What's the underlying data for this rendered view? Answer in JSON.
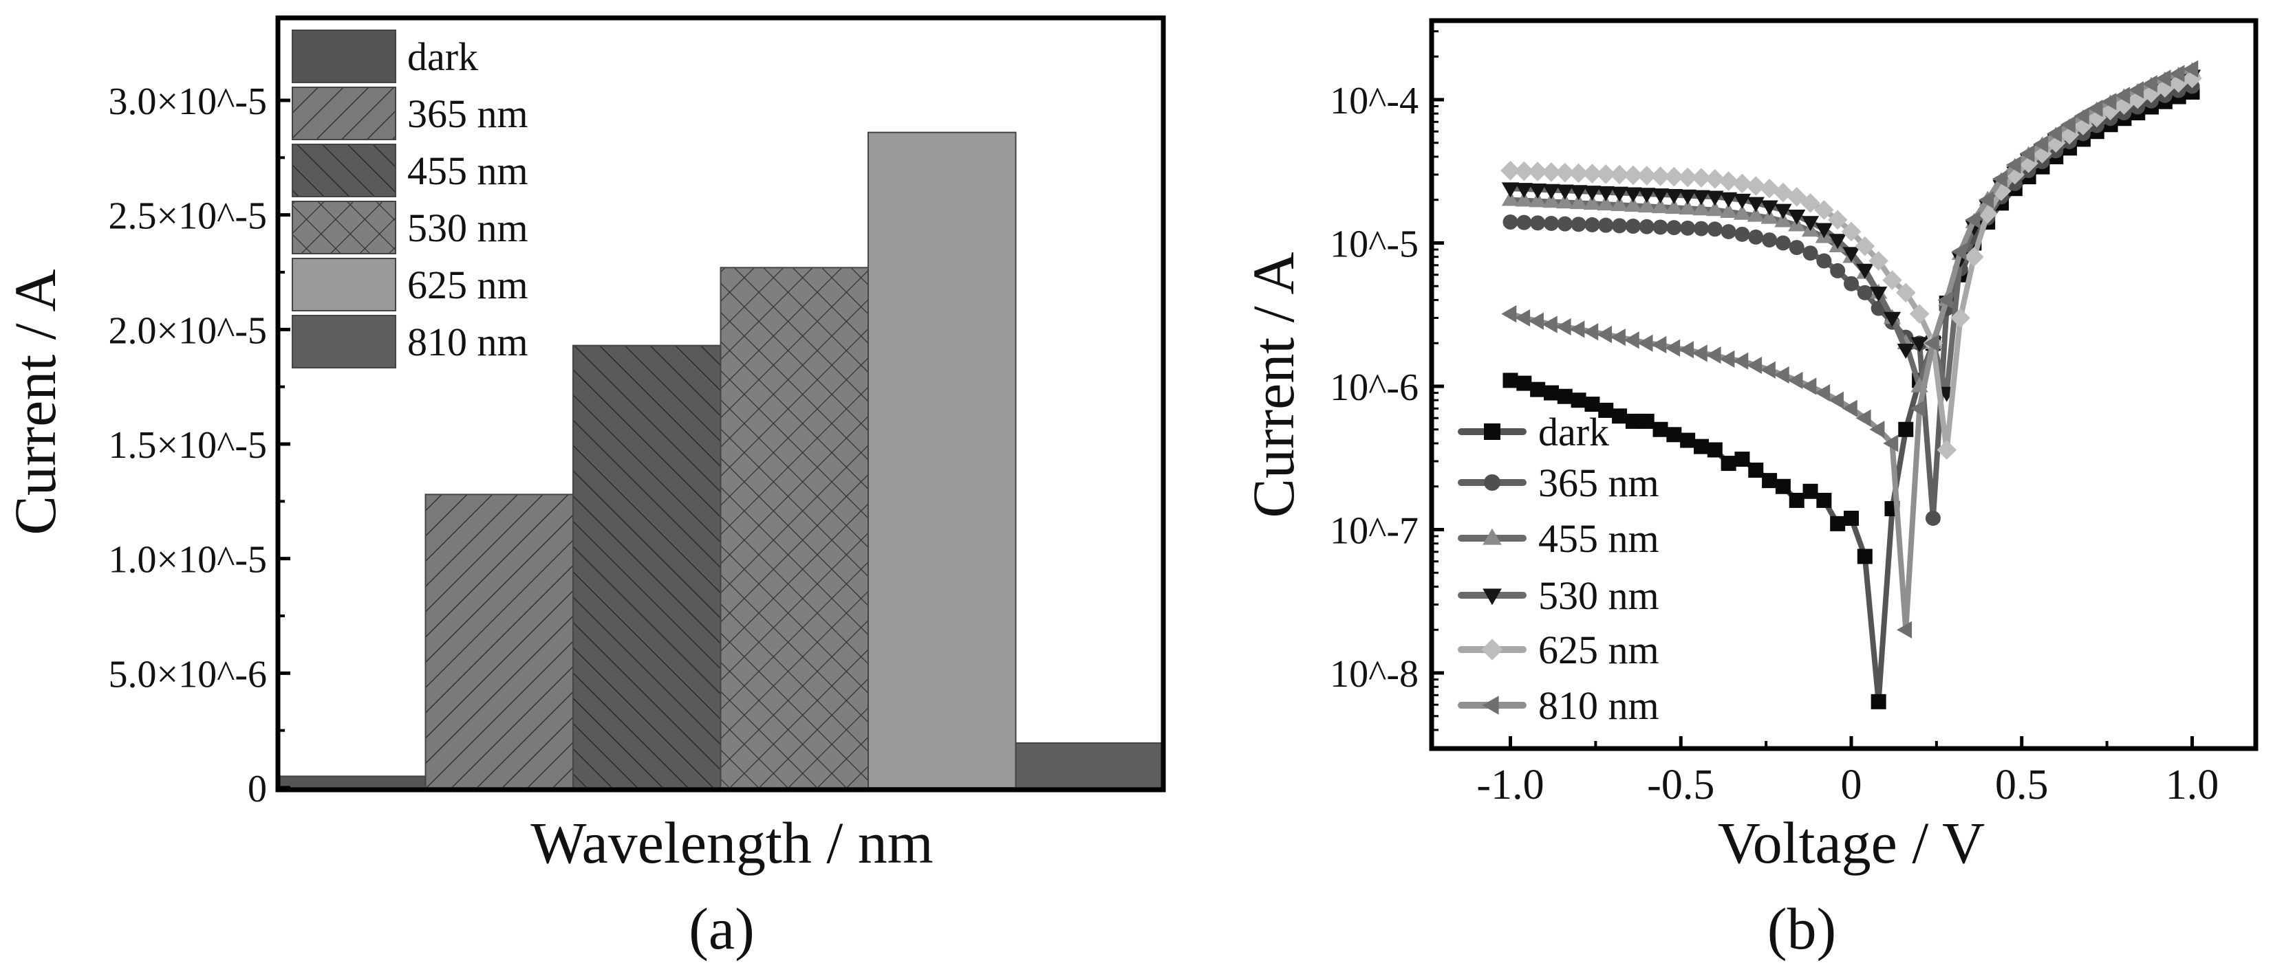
{
  "chart_data": [
    {
      "type": "bar",
      "panel_label": "(a)",
      "xlabel": "Wavelength / nm",
      "ylabel": "Current / A",
      "ylim": [
        0,
        3.36e-05
      ],
      "yticks": [
        0,
        5e-06,
        1e-05,
        1.5e-05,
        2e-05,
        2.5e-05,
        3e-05
      ],
      "ytick_labels": [
        "0",
        "5.0×10^-6",
        "1.0×10^-5",
        "1.5×10^-5",
        "2.0×10^-5",
        "2.5×10^-5",
        "3.0×10^-5"
      ],
      "categories": [
        "dark",
        "365 nm",
        "455 nm",
        "530 nm",
        "625 nm",
        "810 nm"
      ],
      "values": [
        5e-07,
        1.28e-05,
        1.93e-05,
        2.27e-05,
        2.86e-05,
        1.95e-06
      ],
      "fill_colors": [
        "#555555",
        "#7a7a7a",
        "#5a5a5a",
        "#7f7f7f",
        "#9a9a9a",
        "#5e5e5e"
      ],
      "patterns": [
        "solid",
        "hatch-forward",
        "hatch-back",
        "crosshatch",
        "solid",
        "solid"
      ],
      "legend_position": "top-left"
    },
    {
      "type": "line",
      "panel_label": "(b)",
      "xlabel": "Voltage / V",
      "ylabel": "Current / A",
      "yscale": "log",
      "xlim": [
        -1.25,
        1.25
      ],
      "ylim": [
        2.95e-09,
        0.000355
      ],
      "xticks": [
        -1.0,
        -0.5,
        0,
        0.5,
        1.0
      ],
      "xtick_labels": [
        "-1.0",
        "-0.5",
        "0",
        "0.5",
        "1.0"
      ],
      "yticks": [
        1e-08,
        1e-07,
        1e-06,
        1e-05,
        0.0001
      ],
      "ytick_labels": [
        "10^-8",
        "10^-7",
        "10^-6",
        "10^-5",
        "10^-4"
      ],
      "legend_position": "bottom-left",
      "x": [
        -1.0,
        -0.96,
        -0.92,
        -0.88,
        -0.84,
        -0.8,
        -0.76,
        -0.72,
        -0.68,
        -0.64,
        -0.6,
        -0.56,
        -0.52,
        -0.48,
        -0.44,
        -0.4,
        -0.36,
        -0.32,
        -0.28,
        -0.24,
        -0.2,
        -0.16,
        -0.12,
        -0.08,
        -0.04,
        0.0,
        0.04,
        0.08,
        0.12,
        0.16,
        0.2,
        0.24,
        0.28,
        0.32,
        0.36,
        0.4,
        0.44,
        0.48,
        0.52,
        0.56,
        0.6,
        0.64,
        0.68,
        0.72,
        0.76,
        0.8,
        0.84,
        0.88,
        0.92,
        0.96,
        1.0
      ],
      "series": [
        {
          "name": "dark",
          "marker": "square",
          "line_color": "#555555",
          "marker_color": "#0a0a0a",
          "values": [
            1.1e-06,
            1.05e-06,
            9.5e-07,
            9e-07,
            8.5e-07,
            8e-07,
            7.5e-07,
            6.8e-07,
            6.2e-07,
            5.7e-07,
            5.7e-07,
            5e-07,
            4.6e-07,
            4.2e-07,
            3.8e-07,
            3.6e-07,
            2.9e-07,
            3.1e-07,
            2.6e-07,
            2.2e-07,
            2e-07,
            1.6e-07,
            1.85e-07,
            1.6e-07,
            1.1e-07,
            1.2e-07,
            6.5e-08,
            6.3e-09,
            1.4e-07,
            5e-07,
            1.1e-06,
            2e-06,
            3.8e-06,
            6e-06,
            1e-05,
            1.4e-05,
            1.9e-05,
            2.4e-05,
            2.9e-05,
            3.4e-05,
            4e-05,
            4.6e-05,
            5.3e-05,
            6e-05,
            6.7e-05,
            7.4e-05,
            8.1e-05,
            8.9e-05,
            9.7e-05,
            0.000105,
            0.000113
          ]
        },
        {
          "name": "365 nm",
          "marker": "circle",
          "line_color": "#606060",
          "marker_color": "#4f4f4f",
          "values": [
            1.4e-05,
            1.39e-05,
            1.38e-05,
            1.37e-05,
            1.36e-05,
            1.35e-05,
            1.34e-05,
            1.33e-05,
            1.32e-05,
            1.31e-05,
            1.3e-05,
            1.29e-05,
            1.28e-05,
            1.27e-05,
            1.26e-05,
            1.25e-05,
            1.2e-05,
            1.15e-05,
            1.1e-05,
            1.05e-05,
            1e-05,
            9.3e-06,
            8.5e-06,
            7.5e-06,
            6.4e-06,
            5.2e-06,
            4.5e-06,
            3.5e-06,
            2.8e-06,
            2.2e-06,
            2e-06,
            1.2e-07,
            3.5e-06,
            6.6e-06,
            1.1e-05,
            1.5e-05,
            2.1e-05,
            2.6e-05,
            3.2e-05,
            3.7e-05,
            4.4e-05,
            5.1e-05,
            5.8e-05,
            6.6e-05,
            7.4e-05,
            8.1e-05,
            8.9e-05,
            9.8e-05,
            0.000107,
            0.000116,
            0.000124
          ]
        },
        {
          "name": "455 nm",
          "marker": "triangle-up",
          "line_color": "#6a6a6a",
          "marker_color": "#8a8a8a",
          "values": [
            2e-05,
            1.98e-05,
            1.96e-05,
            1.94e-05,
            1.92e-05,
            1.9e-05,
            1.88e-05,
            1.86e-05,
            1.84e-05,
            1.82e-05,
            1.8e-05,
            1.78e-05,
            1.76e-05,
            1.74e-05,
            1.72e-05,
            1.7e-05,
            1.65e-05,
            1.6e-05,
            1.55e-05,
            1.5e-05,
            1.42e-05,
            1.33e-05,
            1.22e-05,
            1.1e-05,
            9.5e-06,
            8e-06,
            6.2e-06,
            4.5e-06,
            3e-06,
            2e-06,
            1e-06,
            2e-06,
            4e-06,
            8.4e-06,
            1.4e-05,
            2e-05,
            2.7e-05,
            3.4e-05,
            4.1e-05,
            4.8e-05,
            5.6e-05,
            6.4e-05,
            7.4e-05,
            8.4e-05,
            9.4e-05,
            0.000104,
            0.000113,
            0.000125,
            0.000136,
            0.000147,
            0.000158
          ]
        },
        {
          "name": "530 nm",
          "marker": "triangle-down",
          "line_color": "#6a6a6a",
          "marker_color": "#151515",
          "values": [
            2.4e-05,
            2.38e-05,
            2.36e-05,
            2.34e-05,
            2.32e-05,
            2.3e-05,
            2.28e-05,
            2.26e-05,
            2.24e-05,
            2.22e-05,
            2.2e-05,
            2.18e-05,
            2.16e-05,
            2.14e-05,
            2.12e-05,
            2.1e-05,
            2.05e-05,
            2e-05,
            1.9e-05,
            1.8e-05,
            1.7e-05,
            1.55e-05,
            1.4e-05,
            1.25e-05,
            1.05e-05,
            8.5e-06,
            6.5e-06,
            4.5e-06,
            3e-06,
            1.8e-06,
            2e-06,
            2e-06,
            9e-07,
            7.8e-06,
            1.3e-05,
            1.8e-05,
            2.5e-05,
            3.1e-05,
            3.8e-05,
            4.4e-05,
            5.2e-05,
            6e-05,
            6.9e-05,
            7.8e-05,
            8.7e-05,
            9.6e-05,
            0.000105,
            0.000116,
            0.000126,
            0.000137,
            0.000147
          ]
        },
        {
          "name": "625 nm",
          "marker": "diamond",
          "line_color": "#a8a8a8",
          "marker_color": "#bdbdbd",
          "values": [
            3.2e-05,
            3.17e-05,
            3.15e-05,
            3.12e-05,
            3.1e-05,
            3.07e-05,
            3.05e-05,
            3.02e-05,
            3e-05,
            2.97e-05,
            2.95e-05,
            2.92e-05,
            2.9e-05,
            2.87e-05,
            2.85e-05,
            2.8e-05,
            2.7e-05,
            2.6e-05,
            2.5e-05,
            2.4e-05,
            2.25e-05,
            2.1e-05,
            1.9e-05,
            1.7e-05,
            1.45e-05,
            1.2e-05,
            9.5e-06,
            7.5e-06,
            5.5e-06,
            4.5e-06,
            3.2e-06,
            2e-06,
            3.6e-07,
            3e-06,
            8e-06,
            1.6e-05,
            2.3e-05,
            3e-05,
            3.6e-05,
            4.2e-05,
            5e-05,
            5.7e-05,
            6.6e-05,
            7.5e-05,
            8.4e-05,
            9.2e-05,
            0.000101,
            0.000111,
            0.000121,
            0.000131,
            0.000141
          ]
        },
        {
          "name": "810 nm",
          "marker": "triangle-left",
          "line_color": "#8f8f8f",
          "marker_color": "#6f6f6f",
          "values": [
            3.2e-06,
            3e-06,
            2.85e-06,
            2.7e-06,
            2.6e-06,
            2.5e-06,
            2.4e-06,
            2.3e-06,
            2.2e-06,
            2.1e-06,
            2e-06,
            1.95e-06,
            1.85e-06,
            1.8e-06,
            1.7e-06,
            1.65e-06,
            1.55e-06,
            1.5e-06,
            1.4e-06,
            1.3e-06,
            1.2e-06,
            1.1e-06,
            1e-06,
            9e-07,
            8e-07,
            7e-07,
            6e-07,
            5e-07,
            4e-07,
            2e-08,
            7e-07,
            2e-06,
            4e-06,
            8.7e-06,
            1.45e-05,
            2e-05,
            2.8e-05,
            3.5e-05,
            4.2e-05,
            4.9e-05,
            5.8e-05,
            6.7e-05,
            7.7e-05,
            8.7e-05,
            9.7e-05,
            0.000107,
            0.000117,
            0.000129,
            0.000141,
            0.000152,
            0.000164
          ]
        }
      ]
    }
  ]
}
